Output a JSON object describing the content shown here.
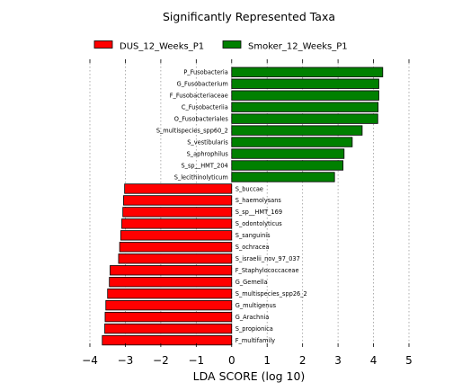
{
  "chart_data": {
    "type": "bar",
    "orientation": "horizontal",
    "title": "Significantly Represented Taxa",
    "xlabel": "LDA SCORE (log 10)",
    "ylabel": "",
    "xlim": [
      -4,
      5
    ],
    "xticks": [
      -4,
      -3,
      -2,
      -1,
      0,
      1,
      2,
      3,
      4,
      5
    ],
    "xtick_labels": [
      "−4",
      "−3",
      "−2",
      "−1",
      "0",
      "1",
      "2",
      "3",
      "4",
      "5"
    ],
    "grid": "vertical dotted",
    "legend_position": "top",
    "series": [
      {
        "name": "DUS_12_Weeks_P1",
        "color": "#ff0000",
        "categories": [
          "S_buccae",
          "S_haemolysans",
          "S_sp__HMT_169",
          "S_odontolyticus",
          "S_sanguinis",
          "S_ochracea",
          "S_israelii_nov_97_037",
          "F_Staphylococcaceae",
          "G_Gemella",
          "S_multispecies_spp26_2",
          "G_multigenus",
          "G_Arachnia",
          "S_propionica",
          "F_multifamily"
        ],
        "values": [
          -3.02,
          -3.05,
          -3.07,
          -3.1,
          -3.13,
          -3.16,
          -3.19,
          -3.43,
          -3.45,
          -3.5,
          -3.55,
          -3.57,
          -3.58,
          -3.65
        ]
      },
      {
        "name": "Smoker_12_Weeks_P1",
        "color": "#008000",
        "categories": [
          "P_Fusobacteria",
          "G_Fusobacterium",
          "F_Fusobacteriaceae",
          "C_Fusobacteriia",
          "O_Fusobacteriales",
          "S_multispecies_spp60_2",
          "S_vestibularis",
          "S_aphrophilus",
          "S_sp__HMT_204",
          "S_lecithinolyticum"
        ],
        "values": [
          4.26,
          4.15,
          4.15,
          4.13,
          4.12,
          3.68,
          3.4,
          3.17,
          3.14,
          2.9
        ]
      }
    ]
  }
}
